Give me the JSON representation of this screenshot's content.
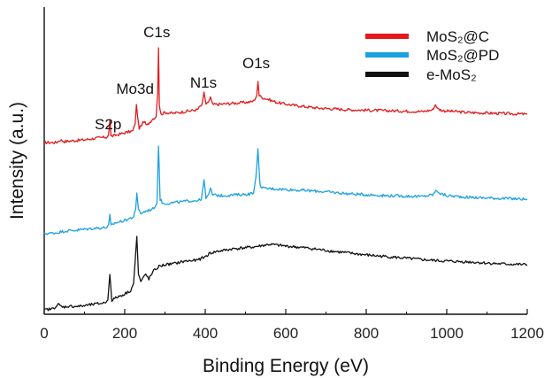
{
  "chart_data": {
    "type": "line",
    "title": "",
    "xlabel": "Binding Energy (eV)",
    "ylabel": "Intensity (a.u.)",
    "xlim": [
      0,
      1200
    ],
    "x_ticks": [
      "0",
      "200",
      "400",
      "600",
      "800",
      "1000",
      "1200"
    ],
    "y_ticks_shown": false,
    "legend_position": "top-right",
    "grid": false,
    "peak_labels": [
      {
        "text": "S2p",
        "x": 163
      },
      {
        "text": "Mo3d",
        "x": 230
      },
      {
        "text": "C1s",
        "x": 284
      },
      {
        "text": "N1s",
        "x": 400
      },
      {
        "text": "O1s",
        "x": 531
      }
    ],
    "series": [
      {
        "name": "MoS₂@C",
        "color": "#e31a1c",
        "x": [
          0,
          30,
          40,
          50,
          70,
          100,
          130,
          155,
          160,
          163,
          166,
          175,
          200,
          220,
          226,
          229,
          232,
          236,
          242,
          248,
          255,
          262,
          270,
          278,
          282,
          284,
          286,
          290,
          300,
          320,
          350,
          380,
          392,
          397,
          402,
          408,
          413,
          418,
          430,
          460,
          490,
          515,
          520,
          528,
          531,
          534,
          540,
          555,
          580,
          620,
          680,
          760,
          850,
          940,
          965,
          972,
          978,
          990,
          1050,
          1120,
          1200
        ],
        "y": [
          15,
          15,
          18,
          16,
          17,
          18,
          20,
          21,
          24,
          41,
          22,
          23,
          26,
          28,
          36,
          58,
          44,
          31,
          35,
          39,
          34,
          38,
          42,
          44,
          72,
          122,
          58,
          47,
          49,
          48,
          50,
          52,
          58,
          72,
          57,
          61,
          66,
          58,
          58,
          59,
          60,
          61,
          62,
          68,
          84,
          68,
          66,
          64,
          60,
          57,
          54,
          52,
          51,
          50,
          52,
          58,
          53,
          51,
          49,
          48,
          47
        ]
      },
      {
        "name": "MoS₂@PD",
        "color": "#1ba1e2",
        "x": [
          0,
          30,
          50,
          80,
          120,
          155,
          160,
          163,
          166,
          175,
          200,
          222,
          227,
          230,
          234,
          240,
          255,
          270,
          280,
          284,
          288,
          295,
          320,
          360,
          390,
          397,
          402,
          408,
          413,
          418,
          440,
          480,
          510,
          520,
          526,
          531,
          536,
          545,
          560,
          600,
          680,
          760,
          850,
          940,
          965,
          975,
          985,
          1000,
          1060,
          1130,
          1200
        ],
        "y": [
          1,
          2,
          4,
          5,
          7,
          8,
          10,
          22,
          10,
          13,
          16,
          20,
          28,
          47,
          28,
          24,
          27,
          29,
          35,
          100,
          40,
          35,
          36,
          38,
          39,
          62,
          42,
          44,
          52,
          45,
          44,
          45,
          46,
          47,
          65,
          97,
          56,
          52,
          52,
          51,
          49,
          46,
          44,
          43,
          45,
          50,
          46,
          44,
          42,
          41,
          40
        ]
      },
      {
        "name": "e-MoS₂",
        "color": "#111111",
        "x": [
          0,
          20,
          35,
          45,
          60,
          90,
          120,
          150,
          158,
          163,
          168,
          180,
          200,
          215,
          222,
          226,
          230,
          234,
          240,
          246,
          252,
          260,
          272,
          285,
          300,
          320,
          350,
          380,
          400,
          412,
          430,
          470,
          520,
          560,
          600,
          650,
          720,
          800,
          880,
          960,
          1000,
          1060,
          1130,
          1200
        ],
        "y": [
          0,
          1,
          6,
          3,
          4,
          4,
          6,
          8,
          11,
          40,
          11,
          14,
          18,
          22,
          30,
          55,
          83,
          40,
          32,
          36,
          40,
          35,
          44,
          49,
          51,
          52,
          55,
          56,
          60,
          64,
          66,
          69,
          71,
          74,
          72,
          70,
          66,
          62,
          59,
          56,
          55,
          54,
          52,
          51
        ]
      }
    ]
  }
}
